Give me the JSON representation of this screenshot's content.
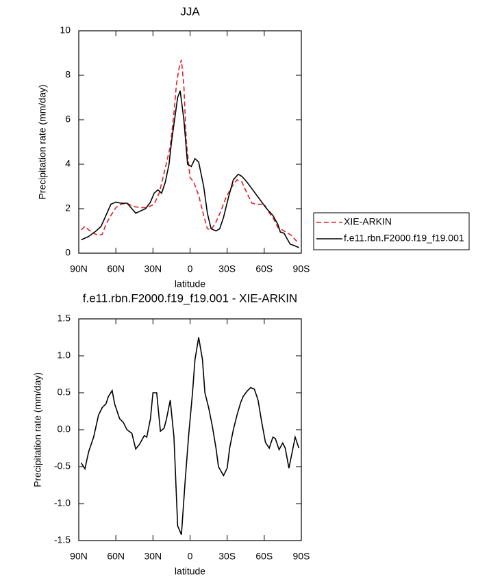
{
  "chart_data": [
    {
      "type": "line",
      "title": "JJA",
      "xlabel": "latitude",
      "ylabel": "Precipitation rate (mm/day)",
      "xlim": [
        90,
        -90
      ],
      "xticks": [
        {
          "value": 90,
          "label": "90N"
        },
        {
          "value": 60,
          "label": "60N"
        },
        {
          "value": 30,
          "label": "30N"
        },
        0,
        {
          "value": -30,
          "label": "30S"
        },
        {
          "value": -60,
          "label": "60S"
        },
        {
          "value": -90,
          "label": "90S"
        }
      ],
      "ylim": [
        0,
        10
      ],
      "yticks": [
        0,
        2,
        4,
        6,
        8,
        10
      ],
      "legend": "right",
      "series": [
        {
          "name": "XIE-ARKIN",
          "color": "#e02020",
          "style": "dashed",
          "x": [
            88,
            85,
            82,
            78,
            74,
            71,
            68,
            64,
            60,
            56,
            51,
            46,
            40,
            35,
            29,
            25,
            21,
            16,
            13,
            11,
            9,
            7,
            5,
            3,
            0,
            -3,
            -7,
            -11,
            -14,
            -17,
            -21,
            -25,
            -29,
            -34,
            -38,
            -42,
            -46,
            -50,
            -54,
            -60,
            -63,
            -68,
            -71,
            -76,
            -82,
            -86,
            -88
          ],
          "values": [
            1.05,
            1.2,
            1.05,
            0.9,
            0.8,
            0.85,
            1.3,
            1.7,
            2.05,
            2.2,
            2.25,
            2.1,
            2.05,
            2.05,
            2.2,
            2.7,
            3.6,
            4.8,
            6.3,
            7.6,
            8.3,
            8.7,
            7.5,
            5.0,
            3.4,
            3.2,
            2.6,
            1.7,
            1.1,
            1.05,
            1.4,
            1.9,
            2.5,
            3.0,
            3.3,
            3.2,
            2.7,
            2.25,
            2.2,
            2.2,
            1.9,
            1.5,
            1.15,
            1.0,
            0.8,
            0.55,
            0.5
          ]
        },
        {
          "name": "f.e11.rbn.F2000.f19_f19.001",
          "color": "#000000",
          "style": "solid",
          "x": [
            88,
            82,
            76,
            72,
            68,
            64,
            60,
            56,
            51,
            47,
            44,
            40,
            36,
            32,
            29,
            26,
            23,
            20,
            17,
            15,
            12,
            10,
            8,
            5,
            2,
            -1,
            -4,
            -7,
            -11,
            -14,
            -17,
            -21,
            -24,
            -27,
            -31,
            -35,
            -39,
            -42,
            -46,
            -50,
            -54,
            -58,
            -62,
            -67,
            -71,
            -73,
            -76,
            -79,
            -81,
            -84,
            -88
          ],
          "values": [
            0.6,
            0.75,
            1.0,
            1.2,
            1.7,
            2.2,
            2.3,
            2.25,
            2.25,
            2.0,
            1.8,
            1.9,
            2.0,
            2.3,
            2.7,
            2.85,
            2.7,
            3.2,
            4.0,
            5.0,
            6.2,
            7.0,
            7.3,
            6.0,
            4.0,
            3.9,
            4.25,
            4.1,
            3.0,
            1.8,
            1.1,
            1.0,
            1.1,
            1.6,
            2.5,
            3.3,
            3.55,
            3.45,
            3.2,
            2.9,
            2.6,
            2.3,
            2.0,
            1.7,
            1.3,
            0.95,
            0.9,
            0.6,
            0.4,
            0.35,
            0.25
          ]
        }
      ]
    },
    {
      "type": "line",
      "title": "f.e11.rbn.F2000.f19_f19.001 - XIE-ARKIN",
      "xlabel": "latitude",
      "ylabel": "Precipitation rate (mm/day)",
      "xlim": [
        90,
        -90
      ],
      "xticks": [
        {
          "value": 90,
          "label": "90N"
        },
        {
          "value": 60,
          "label": "60N"
        },
        {
          "value": 30,
          "label": "30N"
        },
        0,
        {
          "value": -30,
          "label": "30S"
        },
        {
          "value": -60,
          "label": "60S"
        },
        {
          "value": -90,
          "label": "90S"
        }
      ],
      "ylim": [
        -1.5,
        1.5
      ],
      "yticks": [
        -1.5,
        {
          "value": -1,
          "label": "-1.0"
        },
        -0.5,
        {
          "value": 0,
          "label": "0.0"
        },
        0.5,
        {
          "value": 1,
          "label": "1.0"
        },
        1.5
      ],
      "color": "#000000",
      "x": [
        88,
        85,
        82,
        78,
        74,
        71,
        68,
        66,
        63,
        61,
        57,
        54,
        51,
        47,
        44,
        41,
        37,
        35,
        32,
        30,
        27,
        24,
        21,
        19,
        16,
        13,
        10,
        7,
        4,
        1,
        -2,
        -4,
        -7,
        -10,
        -12,
        -15,
        -18,
        -21,
        -23,
        -27,
        -30,
        -32,
        -35,
        -38,
        -41,
        -43,
        -46,
        -49,
        -52,
        -55,
        -58,
        -61,
        -64,
        -67,
        -69,
        -72,
        -75,
        -77,
        -80,
        -82,
        -85,
        -88
      ],
      "values": [
        -0.45,
        -0.53,
        -0.3,
        -0.1,
        0.2,
        0.3,
        0.35,
        0.45,
        0.53,
        0.35,
        0.15,
        0.1,
        0.0,
        -0.05,
        -0.26,
        -0.2,
        -0.08,
        -0.1,
        0.15,
        0.5,
        0.5,
        -0.02,
        0.02,
        0.15,
        0.4,
        -0.1,
        -1.3,
        -1.42,
        -0.7,
        -0.05,
        0.5,
        0.95,
        1.25,
        0.95,
        0.5,
        0.3,
        0.05,
        -0.25,
        -0.5,
        -0.62,
        -0.52,
        -0.25,
        0.0,
        0.2,
        0.37,
        0.45,
        0.52,
        0.57,
        0.55,
        0.4,
        0.1,
        -0.17,
        -0.25,
        -0.1,
        -0.12,
        -0.27,
        -0.18,
        -0.25,
        -0.52,
        -0.35,
        -0.1,
        -0.25
      ]
    }
  ]
}
